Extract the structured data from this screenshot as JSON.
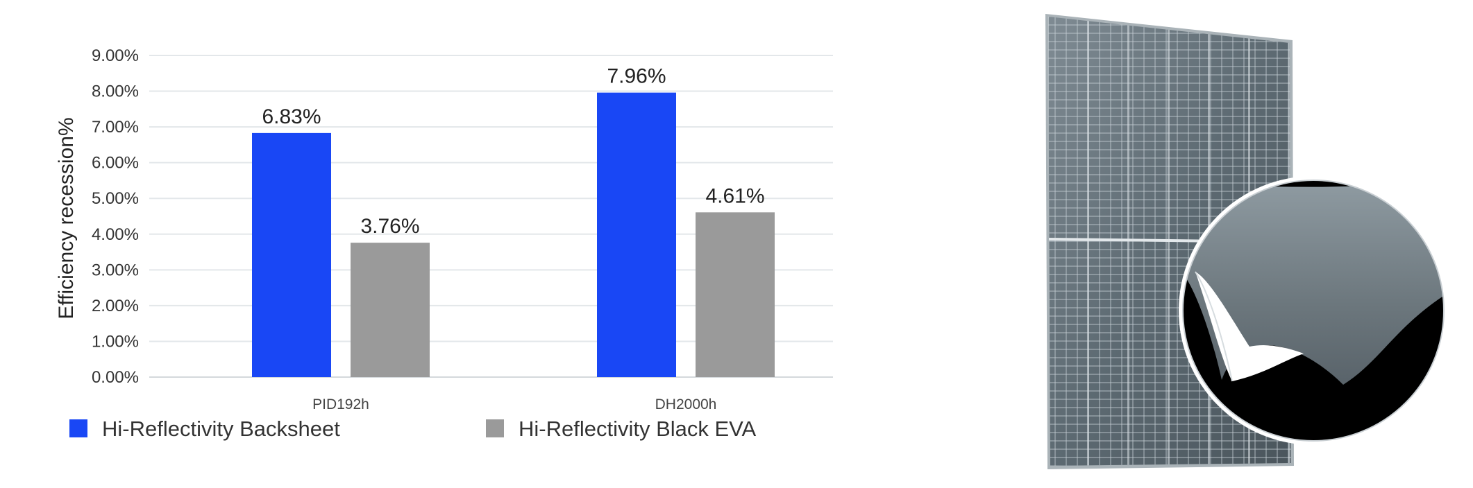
{
  "chart_data": {
    "type": "bar",
    "categories": [
      "PID192h",
      "DH2000h"
    ],
    "series": [
      {
        "name": "Hi-Reflectivity Backsheet",
        "values": [
          6.83,
          7.96
        ],
        "labels": [
          "6.83%",
          "7.96%"
        ],
        "color": "#1947f5"
      },
      {
        "name": "Hi-Reflectivity Black EVA",
        "values": [
          3.76,
          4.61
        ],
        "labels": [
          "3.76%",
          "4.61%"
        ],
        "color": "#9a9a9a"
      }
    ],
    "ylabel": "Efficiency recession%",
    "xlabel": "",
    "ylim": [
      0,
      9
    ],
    "yticks": [
      "0.00%",
      "1.00%",
      "2.00%",
      "3.00%",
      "4.00%",
      "5.00%",
      "6.00%",
      "7.00%",
      "8.00%",
      "9.00%"
    ],
    "grid": true,
    "legend_position": "bottom"
  },
  "image": {
    "subject": "solar-panel-icon"
  }
}
